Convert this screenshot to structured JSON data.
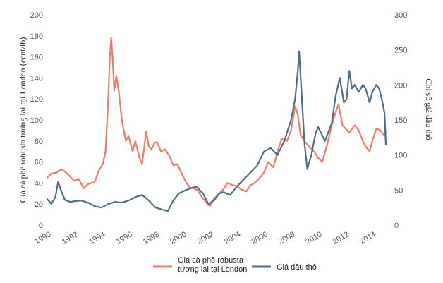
{
  "chart_data": {
    "type": "line",
    "ylabel_left": "Giá cà phê robusta tương lai tại London (cent/lb)",
    "ylabel_right": "Chỉ số giá dầu thô",
    "ylim_left": [
      0,
      200
    ],
    "ylim_right": [
      0,
      300
    ],
    "xlim": [
      1990,
      2015
    ],
    "x_ticks": [
      "1990",
      "1992",
      "1994",
      "1996",
      "1998",
      "2000",
      "2002",
      "2004",
      "2006",
      "2008",
      "2010",
      "2012",
      "2014"
    ],
    "y_left_ticks": [
      "0",
      "20",
      "40",
      "60",
      "80",
      "100",
      "120",
      "140",
      "160",
      "180",
      "200"
    ],
    "y_right_ticks": [
      "0",
      "50",
      "100",
      "150",
      "200",
      "250",
      "300"
    ],
    "grid": false,
    "legend_position": "bottom",
    "series": [
      {
        "name": "Giá cà phê robusta tương lai tại London",
        "axis": "left",
        "color": "#f07b6a",
        "x": [
          1990,
          1990.3,
          1990.7,
          1991,
          1991.3,
          1991.7,
          1992,
          1992.3,
          1992.7,
          1993,
          1993.5,
          1993.8,
          1994.1,
          1994.3,
          1994.5,
          1994.62,
          1994.72,
          1994.82,
          1994.95,
          1995.1,
          1995.3,
          1995.5,
          1995.8,
          1996,
          1996.3,
          1996.5,
          1996.8,
          1997,
          1997.3,
          1997.5,
          1997.7,
          1997.9,
          1998.1,
          1998.4,
          1998.7,
          1999,
          1999.3,
          1999.6,
          1999.9,
          2000.2,
          2000.5,
          2000.8,
          2001.1,
          2001.4,
          2001.7,
          2002,
          2002.3,
          2002.7,
          2003,
          2003.3,
          2003.7,
          2004,
          2004.3,
          2004.7,
          2005,
          2005.3,
          2005.7,
          2006,
          2006.3,
          2006.7,
          2007,
          2007.3,
          2007.7,
          2008,
          2008.3,
          2008.5,
          2008.7,
          2009,
          2009.3,
          2009.7,
          2010,
          2010.3,
          2010.7,
          2011,
          2011.3,
          2011.5,
          2011.8,
          2012,
          2012.3,
          2012.7,
          2013,
          2013.3,
          2013.5,
          2013.8,
          2014,
          2014.3,
          2014.6,
          2014.9,
          2015
        ],
        "values": [
          45,
          49,
          50,
          53,
          51,
          46,
          42,
          44,
          35,
          39,
          41,
          52,
          58,
          70,
          120,
          160,
          178,
          160,
          128,
          142,
          125,
          100,
          80,
          85,
          70,
          80,
          64,
          58,
          89,
          75,
          72,
          78,
          79,
          70,
          72,
          66,
          57,
          58,
          50,
          42,
          36,
          35,
          33,
          27,
          22,
          18,
          25,
          30,
          34,
          40,
          38,
          37,
          34,
          32,
          38,
          40,
          45,
          50,
          60,
          55,
          70,
          82,
          80,
          90,
          113,
          105,
          86,
          80,
          75,
          70,
          64,
          60,
          78,
          95,
          108,
          115,
          95,
          92,
          88,
          95,
          90,
          80,
          75,
          70,
          80,
          92,
          90,
          85,
          89
        ]
      },
      {
        "name": "Giá dầu thô",
        "axis": "right",
        "color": "#4c7082",
        "x": [
          1990,
          1990.3,
          1990.6,
          1990.8,
          1991,
          1991.3,
          1991.7,
          1992,
          1992.5,
          1993,
          1993.5,
          1994,
          1994.5,
          1995,
          1995.5,
          1996,
          1996.5,
          1997,
          1997.5,
          1998,
          1998.5,
          1998.9,
          1999.3,
          1999.7,
          2000,
          2000.5,
          2001,
          2001.5,
          2001.9,
          2002.3,
          2002.7,
          2003,
          2003.5,
          2004,
          2004.5,
          2005,
          2005.5,
          2006,
          2006.5,
          2007,
          2007.5,
          2008,
          2008.3,
          2008.5,
          2008.6,
          2008.8,
          2009,
          2009.2,
          2009.5,
          2009.8,
          2010,
          2010.5,
          2011,
          2011.3,
          2011.6,
          2011.9,
          2012.1,
          2012.3,
          2012.5,
          2012.7,
          2013,
          2013.3,
          2013.5,
          2013.8,
          2014,
          2014.3,
          2014.5,
          2014.7,
          2014.9,
          2015
        ],
        "values": [
          37,
          30,
          40,
          62,
          50,
          36,
          33,
          34,
          35,
          32,
          27,
          25,
          30,
          33,
          32,
          35,
          40,
          43,
          35,
          25,
          22,
          20,
          35,
          45,
          48,
          52,
          55,
          45,
          30,
          35,
          45,
          47,
          43,
          55,
          65,
          75,
          85,
          105,
          110,
          100,
          120,
          150,
          180,
          220,
          248,
          180,
          115,
          80,
          100,
          130,
          140,
          120,
          145,
          185,
          210,
          175,
          180,
          220,
          195,
          200,
          190,
          200,
          195,
          175,
          190,
          200,
          195,
          180,
          160,
          115
        ]
      }
    ]
  }
}
